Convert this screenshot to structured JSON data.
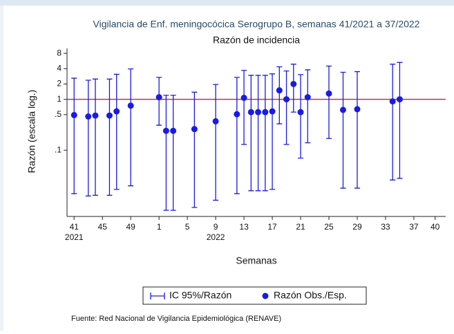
{
  "chart_data": {
    "type": "scatter",
    "title": "Vigilancia de Enf. meningocócica Serogrupo B, semanas 41/2021 a 37/2022",
    "subtitle": "Razón de incidencia",
    "y_label": "Razón (escala log.)",
    "x_label": "Semanas",
    "source": "Fuente: Red Nacional de Vigilancia Epidemiológica (RENAVE)",
    "log_scale": true,
    "ylim": [
      0.005,
      10
    ],
    "yticks": [
      8,
      4,
      2,
      1,
      {
        "value": 0.5,
        "label": ".5"
      },
      {
        "value": 0.1,
        "label": ".1"
      }
    ],
    "xlim": [
      40,
      93.5
    ],
    "xticks": [
      41,
      45,
      49,
      {
        "value": 53,
        "label": "1"
      },
      {
        "value": 57,
        "label": "5"
      },
      {
        "value": 61,
        "label": "9"
      },
      {
        "value": 65,
        "label": "13"
      },
      {
        "value": 69,
        "label": "17"
      },
      {
        "value": 73,
        "label": "21"
      },
      {
        "value": 77,
        "label": "25"
      },
      {
        "value": 81,
        "label": "29"
      },
      {
        "value": 85,
        "label": "33"
      },
      {
        "value": 89,
        "label": "37"
      },
      {
        "value": 92,
        "label": "40"
      }
    ],
    "year_labels": [
      {
        "value": 41,
        "label": "2021"
      },
      {
        "value": 61,
        "label": "2022"
      }
    ],
    "reference_line": {
      "value": 1,
      "color": "#c0305a"
    },
    "error_bar_name": "IC 95%/Razón",
    "series": [
      {
        "name": "Razón Obs./Esp.",
        "color": "#1a1ae6",
        "x": [
          41,
          43,
          44,
          46,
          47,
          49,
          53,
          54,
          55,
          58,
          61,
          64,
          65,
          66,
          67,
          68,
          69,
          70,
          71,
          72,
          73,
          74,
          77,
          79,
          81,
          86,
          87
        ],
        "values": [
          0.49,
          0.46,
          0.48,
          0.48,
          0.58,
          0.75,
          1.1,
          0.24,
          0.24,
          0.26,
          0.37,
          0.51,
          1.07,
          0.56,
          0.56,
          0.56,
          0.58,
          1.5,
          1.0,
          2.0,
          0.56,
          1.1,
          1.3,
          0.62,
          0.64,
          0.91,
          1.0
        ],
        "ci_low": [
          0.014,
          0.0126,
          0.013,
          0.013,
          0.017,
          0.02,
          0.31,
          0.0066,
          0.0066,
          0.0075,
          0.0104,
          0.014,
          0.13,
          0.016,
          0.016,
          0.016,
          0.017,
          0.33,
          0.13,
          0.56,
          0.07,
          0.14,
          0.17,
          0.018,
          0.018,
          0.026,
          0.028
        ],
        "ci_high": [
          2.6,
          2.37,
          2.5,
          2.5,
          3.1,
          3.96,
          2.7,
          1.2,
          1.2,
          1.38,
          1.96,
          2.7,
          3.7,
          2.96,
          2.96,
          2.96,
          3.16,
          4.35,
          3.6,
          4.9,
          3.06,
          3.8,
          4.5,
          3.4,
          3.5,
          4.9,
          5.3
        ]
      }
    ]
  }
}
